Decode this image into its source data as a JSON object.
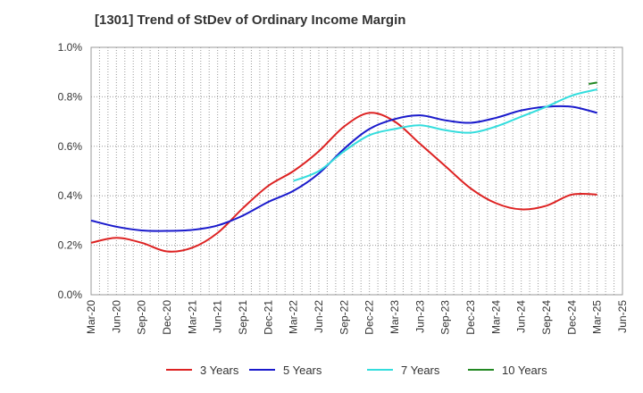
{
  "chart_data": {
    "type": "line",
    "title": "[1301]  Trend of StDev of Ordinary Income Margin",
    "xlabel": "",
    "ylabel": "",
    "x_ticks": [
      "Mar-20",
      "Jun-20",
      "Sep-20",
      "Dec-20",
      "Mar-21",
      "Jun-21",
      "Sep-21",
      "Dec-21",
      "Mar-22",
      "Jun-22",
      "Sep-22",
      "Dec-22",
      "Mar-23",
      "Jun-23",
      "Sep-23",
      "Dec-23",
      "Mar-24",
      "Jun-24",
      "Sep-24",
      "Dec-24",
      "Mar-25",
      "Jun-25"
    ],
    "y_ticks": [
      "0.0%",
      "0.2%",
      "0.4%",
      "0.6%",
      "0.8%",
      "1.0%"
    ],
    "ylim": [
      0,
      1.0
    ],
    "y_unit": "%",
    "grid": true,
    "legend_position": "bottom",
    "series": [
      {
        "name": "3 Years",
        "color": "#dd2222",
        "x": [
          "Mar-20",
          "Jun-20",
          "Sep-20",
          "Dec-20",
          "Mar-21",
          "Jun-21",
          "Sep-21",
          "Dec-21",
          "Mar-22",
          "Jun-22",
          "Sep-22",
          "Dec-22",
          "Mar-23",
          "Jun-23",
          "Sep-23",
          "Dec-23",
          "Mar-24",
          "Jun-24",
          "Sep-24",
          "Dec-24",
          "Mar-25"
        ],
        "values": [
          0.21,
          0.23,
          0.21,
          0.175,
          0.19,
          0.25,
          0.35,
          0.44,
          0.5,
          0.58,
          0.68,
          0.735,
          0.7,
          0.61,
          0.52,
          0.43,
          0.37,
          0.345,
          0.36,
          0.405,
          0.405
        ]
      },
      {
        "name": "5 Years",
        "color": "#1a1acc",
        "x": [
          "Mar-20",
          "Jun-20",
          "Sep-20",
          "Dec-20",
          "Mar-21",
          "Jun-21",
          "Sep-21",
          "Dec-21",
          "Mar-22",
          "Jun-22",
          "Sep-22",
          "Dec-22",
          "Mar-23",
          "Jun-23",
          "Sep-23",
          "Dec-23",
          "Mar-24",
          "Jun-24",
          "Sep-24",
          "Dec-24",
          "Mar-25"
        ],
        "values": [
          0.3,
          0.275,
          0.26,
          0.258,
          0.262,
          0.28,
          0.32,
          0.375,
          0.42,
          0.49,
          0.59,
          0.67,
          0.71,
          0.725,
          0.705,
          0.695,
          0.715,
          0.745,
          0.76,
          0.76,
          0.735
        ]
      },
      {
        "name": "7 Years",
        "color": "#33dddd",
        "x": [
          "Mar-22",
          "Jun-22",
          "Sep-22",
          "Dec-22",
          "Mar-23",
          "Jun-23",
          "Sep-23",
          "Dec-23",
          "Mar-24",
          "Jun-24",
          "Sep-24",
          "Dec-24",
          "Mar-25"
        ],
        "values": [
          0.46,
          0.5,
          0.58,
          0.645,
          0.67,
          0.685,
          0.665,
          0.655,
          0.68,
          0.72,
          0.76,
          0.805,
          0.83
        ]
      },
      {
        "name": "10 Years",
        "color": "#228822",
        "x": [
          "Feb-25",
          "Mar-25"
        ],
        "values": [
          0.852,
          0.858
        ]
      }
    ]
  }
}
